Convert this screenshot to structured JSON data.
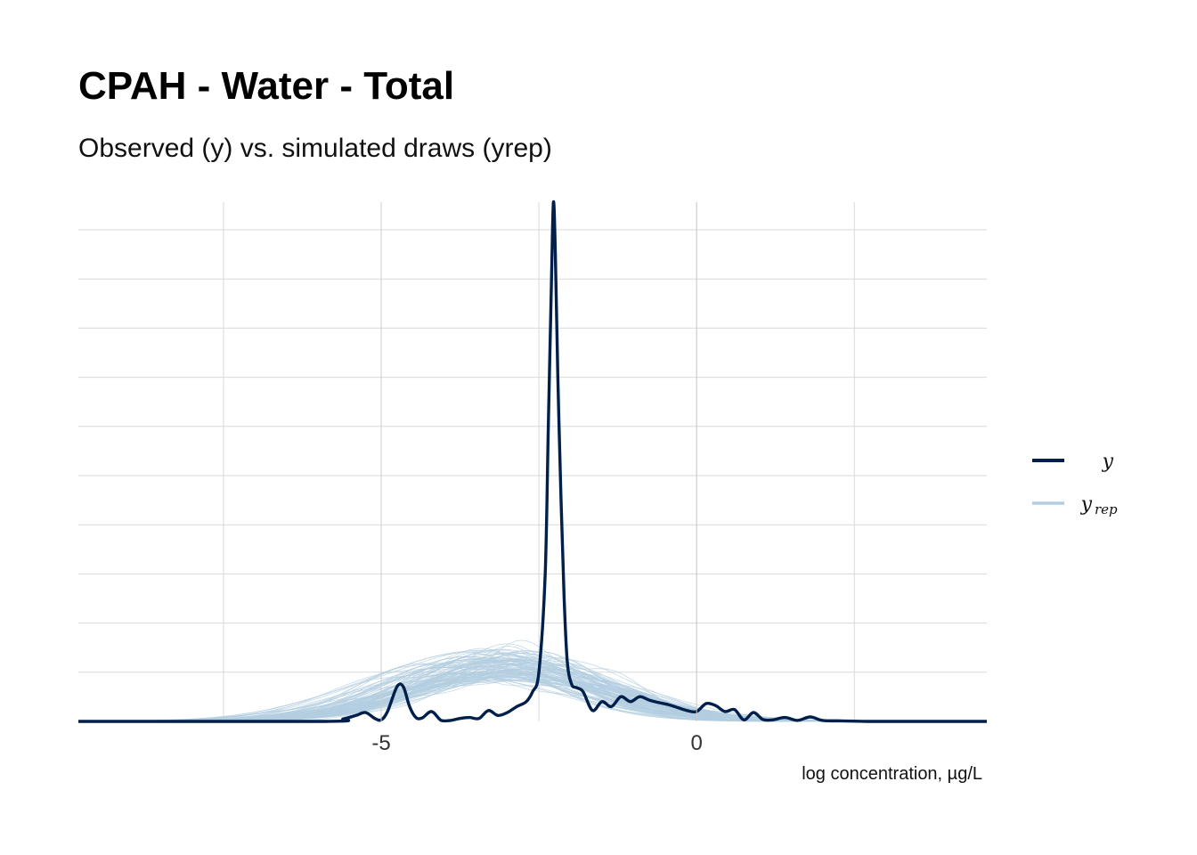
{
  "chart_data": {
    "type": "line",
    "title": "CPAH - Water - Total",
    "subtitle": "Observed (y) vs. simulated draws (yrep)",
    "xlabel": "log concentration, µg/L",
    "ylabel": "",
    "xlim": [
      -9.8,
      4.6
    ],
    "ylim": [
      0,
      1.05
    ],
    "x_ticks": [
      -5,
      0
    ],
    "x_tick_labels": [
      "-5",
      "0"
    ],
    "grid": true,
    "legend_position": "right",
    "legend": [
      {
        "key": "y",
        "label": "y",
        "sub": "",
        "color": "#011f4b"
      },
      {
        "key": "yrep",
        "label": "y",
        "sub": "rep",
        "color": "#b3cde0"
      }
    ],
    "series": [
      {
        "name": "y",
        "color": "#011f4b",
        "x": [
          -9.8,
          -5.9,
          -5.6,
          -5.4,
          -5.25,
          -5.1,
          -5.0,
          -4.9,
          -4.75,
          -4.65,
          -4.55,
          -4.45,
          -4.35,
          -4.2,
          -4.05,
          -3.9,
          -3.75,
          -3.6,
          -3.45,
          -3.3,
          -3.15,
          -3.0,
          -2.85,
          -2.7,
          -2.6,
          -2.5,
          -2.4,
          -2.35,
          -2.3,
          -2.27,
          -2.24,
          -2.2,
          -2.15,
          -2.1,
          -2.05,
          -1.98,
          -1.9,
          -1.8,
          -1.65,
          -1.5,
          -1.35,
          -1.2,
          -1.05,
          -0.9,
          -0.75,
          -0.6,
          -0.45,
          -0.3,
          -0.15,
          0.0,
          0.15,
          0.3,
          0.45,
          0.6,
          0.75,
          0.9,
          1.05,
          1.2,
          1.4,
          1.6,
          1.8,
          2.0,
          2.3,
          2.7,
          3.2,
          4.6
        ],
        "y": [
          0.0,
          0.0,
          0.005,
          0.012,
          0.018,
          0.006,
          0.003,
          0.02,
          0.07,
          0.07,
          0.03,
          0.008,
          0.007,
          0.02,
          0.002,
          0.002,
          0.006,
          0.008,
          0.006,
          0.022,
          0.012,
          0.018,
          0.03,
          0.04,
          0.06,
          0.1,
          0.3,
          0.6,
          0.9,
          1.05,
          0.95,
          0.7,
          0.45,
          0.25,
          0.12,
          0.075,
          0.068,
          0.06,
          0.022,
          0.04,
          0.03,
          0.05,
          0.04,
          0.05,
          0.043,
          0.038,
          0.034,
          0.028,
          0.022,
          0.02,
          0.036,
          0.032,
          0.02,
          0.024,
          0.003,
          0.018,
          0.004,
          0.003,
          0.008,
          0.002,
          0.009,
          0.002,
          0.001,
          0.0,
          0.0,
          0.0
        ]
      },
      {
        "name": "yrep",
        "color": "#b3cde0",
        "draws": 100,
        "density": "normal",
        "mean_range": [
          -3.6,
          -2.6
        ],
        "sd_range": [
          1.3,
          1.75
        ],
        "peak_range": [
          0.085,
          0.145
        ]
      }
    ]
  }
}
